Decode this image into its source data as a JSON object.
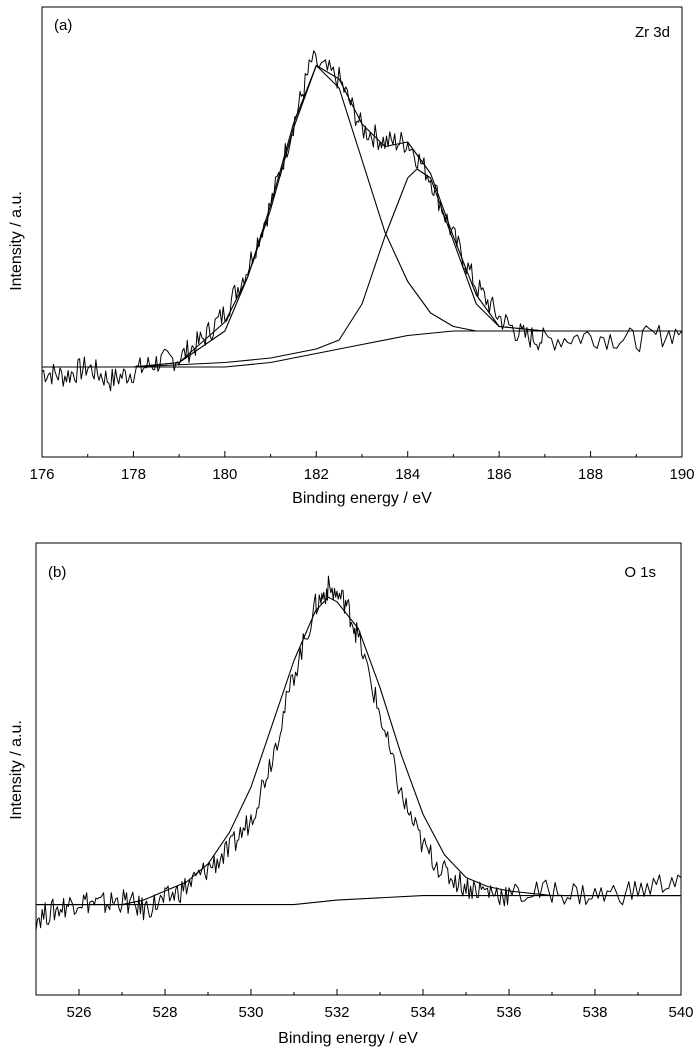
{
  "chart_data": [
    {
      "type": "line",
      "panel_label": "(a)",
      "annotation": "Zr 3d",
      "xlabel": "Binding energy / eV",
      "ylabel": "Intensity / a.u.",
      "xlim": [
        176,
        190
      ],
      "ylim": [
        0,
        1
      ],
      "y_ticks_shown": false,
      "grid": false,
      "x_ticks": [
        176,
        178,
        180,
        182,
        184,
        186,
        188,
        190
      ],
      "x_tick_labels": [
        "176",
        "178",
        "180",
        "182",
        "184",
        "186",
        "188",
        "190"
      ],
      "series": [
        {
          "role": "measured spectrum",
          "x": [
            176.0,
            176.5,
            177.0,
            177.5,
            178.0,
            178.5,
            179.0,
            179.5,
            180.0,
            180.5,
            181.0,
            181.5,
            181.9,
            182.5,
            183.0,
            183.5,
            184.0,
            184.5,
            185.0,
            185.5,
            186.0,
            186.5,
            187.0,
            188.0,
            189.0,
            190.0
          ],
          "y": [
            0.19,
            0.18,
            0.2,
            0.17,
            0.19,
            0.21,
            0.22,
            0.26,
            0.32,
            0.42,
            0.56,
            0.74,
            0.88,
            0.84,
            0.73,
            0.7,
            0.7,
            0.62,
            0.49,
            0.38,
            0.31,
            0.27,
            0.26,
            0.27,
            0.26,
            0.28
          ]
        },
        {
          "role": "fitted envelope",
          "x": [
            176.0,
            177.0,
            178.0,
            179.0,
            180.0,
            180.5,
            181.0,
            181.5,
            182.0,
            182.5,
            183.0,
            183.5,
            184.0,
            184.5,
            185.0,
            185.5,
            186.0,
            187.0,
            188.0,
            189.0,
            190.0
          ],
          "y": [
            0.2,
            0.2,
            0.2,
            0.21,
            0.3,
            0.4,
            0.56,
            0.74,
            0.87,
            0.84,
            0.74,
            0.69,
            0.7,
            0.63,
            0.49,
            0.36,
            0.29,
            0.28,
            0.28,
            0.28,
            0.28
          ]
        },
        {
          "role": "component peak 1",
          "x": [
            176.0,
            177.0,
            178.0,
            179.0,
            180.0,
            180.5,
            181.0,
            181.5,
            182.0,
            182.5,
            183.0,
            183.5,
            184.0,
            184.5,
            185.0,
            185.5,
            186.0,
            187.0,
            190.0
          ],
          "y": [
            0.2,
            0.2,
            0.2,
            0.21,
            0.28,
            0.4,
            0.55,
            0.73,
            0.87,
            0.82,
            0.66,
            0.5,
            0.39,
            0.32,
            0.29,
            0.28,
            0.28,
            0.28,
            0.28
          ]
        },
        {
          "role": "component peak 2",
          "x": [
            176.0,
            178.0,
            180.0,
            181.0,
            182.0,
            182.5,
            183.0,
            183.5,
            184.0,
            184.2,
            184.5,
            185.0,
            185.5,
            186.0,
            187.0,
            190.0
          ],
          "y": [
            0.2,
            0.2,
            0.21,
            0.22,
            0.24,
            0.26,
            0.34,
            0.49,
            0.62,
            0.64,
            0.62,
            0.48,
            0.34,
            0.29,
            0.28,
            0.28
          ]
        },
        {
          "role": "background",
          "x": [
            176.0,
            178.0,
            179.0,
            180.0,
            181.0,
            182.0,
            183.0,
            184.0,
            185.0,
            186.0,
            188.0,
            190.0
          ],
          "y": [
            0.2,
            0.2,
            0.2,
            0.2,
            0.21,
            0.23,
            0.25,
            0.27,
            0.28,
            0.28,
            0.28,
            0.28
          ]
        }
      ]
    },
    {
      "type": "line",
      "panel_label": "(b)",
      "annotation": "O 1s",
      "xlabel": "Binding energy / eV",
      "ylabel": "Intensity / a.u.",
      "xlim": [
        525,
        540
      ],
      "ylim": [
        0,
        1
      ],
      "y_ticks_shown": false,
      "grid": false,
      "x_ticks": [
        526,
        528,
        530,
        532,
        534,
        536,
        538,
        540
      ],
      "x_tick_labels": [
        "526",
        "528",
        "530",
        "532",
        "534",
        "536",
        "538",
        "540"
      ],
      "series": [
        {
          "role": "measured spectrum",
          "x": [
            525.0,
            525.5,
            526.0,
            526.5,
            527.0,
            527.5,
            528.0,
            528.5,
            529.0,
            529.5,
            530.0,
            530.5,
            531.0,
            531.5,
            531.8,
            532.2,
            532.5,
            533.0,
            533.5,
            534.0,
            534.5,
            535.0,
            535.5,
            536.0,
            537.0,
            538.0,
            539.0,
            540.0
          ],
          "y": [
            0.17,
            0.19,
            0.21,
            0.2,
            0.21,
            0.19,
            0.21,
            0.24,
            0.28,
            0.32,
            0.39,
            0.53,
            0.71,
            0.86,
            0.9,
            0.87,
            0.79,
            0.62,
            0.44,
            0.33,
            0.27,
            0.24,
            0.23,
            0.22,
            0.23,
            0.22,
            0.23,
            0.26
          ]
        },
        {
          "role": "fitted peak",
          "x": [
            525.0,
            526.0,
            527.0,
            527.5,
            528.0,
            528.5,
            529.0,
            529.5,
            530.0,
            530.5,
            531.0,
            531.5,
            531.8,
            532.0,
            532.5,
            533.0,
            533.5,
            534.0,
            534.5,
            535.0,
            535.5,
            536.0,
            537.0,
            538.0,
            539.0,
            540.0
          ],
          "y": [
            0.2,
            0.2,
            0.2,
            0.21,
            0.23,
            0.25,
            0.29,
            0.36,
            0.46,
            0.6,
            0.74,
            0.85,
            0.88,
            0.87,
            0.81,
            0.68,
            0.53,
            0.4,
            0.31,
            0.26,
            0.24,
            0.23,
            0.22,
            0.22,
            0.22,
            0.22
          ]
        },
        {
          "role": "background",
          "x": [
            525.0,
            527.0,
            529.0,
            530.0,
            531.0,
            532.0,
            533.0,
            534.0,
            535.0,
            536.0,
            538.0,
            540.0
          ],
          "y": [
            0.2,
            0.2,
            0.2,
            0.2,
            0.2,
            0.21,
            0.215,
            0.22,
            0.22,
            0.22,
            0.22,
            0.22
          ]
        }
      ]
    }
  ]
}
